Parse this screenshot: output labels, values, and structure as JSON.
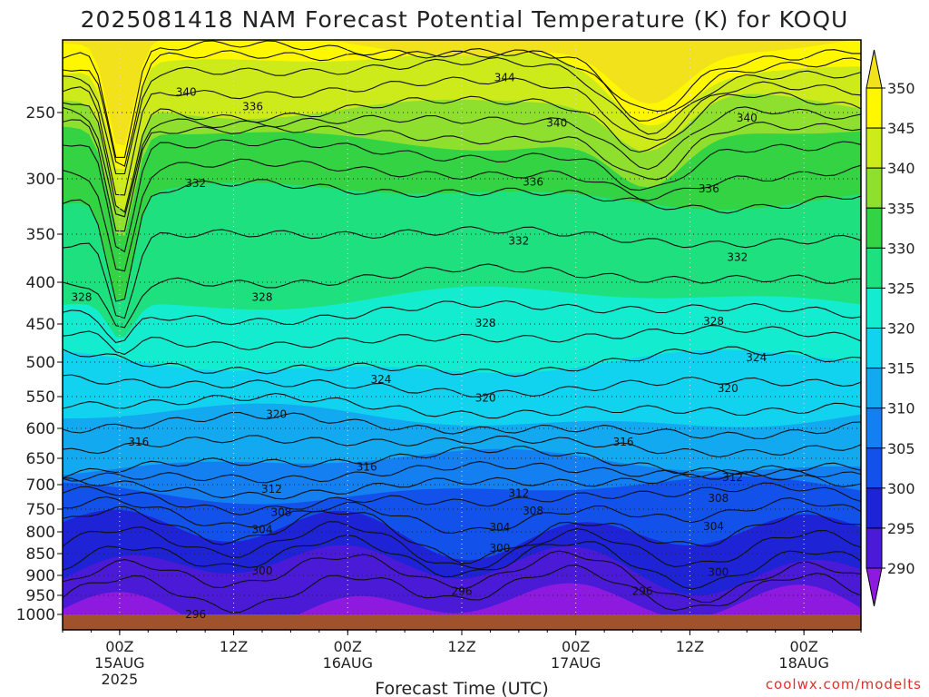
{
  "page_title": "2025081418 NAM Forecast Potential Temperature (K) for KOQU",
  "credit": "coolwx.com/modelts",
  "chart_data": {
    "type": "heatmap",
    "title": "2025081418 NAM Forecast Potential Temperature (K) for KOQU",
    "xlabel": "Forecast Time (UTC)",
    "ylabel": "",
    "x_ticks": [
      {
        "label": "00Z",
        "sub": [
          "15AUG",
          "2025"
        ],
        "hour": 6
      },
      {
        "label": "12Z",
        "sub": [],
        "hour": 18
      },
      {
        "label": "00Z",
        "sub": [
          "16AUG"
        ],
        "hour": 30
      },
      {
        "label": "12Z",
        "sub": [],
        "hour": 42
      },
      {
        "label": "00Z",
        "sub": [
          "17AUG"
        ],
        "hour": 54
      },
      {
        "label": "12Z",
        "sub": [],
        "hour": 66
      },
      {
        "label": "00Z",
        "sub": [
          "18AUG"
        ],
        "hour": 78
      }
    ],
    "xlim_hours": [
      0,
      84
    ],
    "y_ticks": [
      "250",
      "300",
      "350",
      "400",
      "450",
      "500",
      "550",
      "600",
      "650",
      "700",
      "750",
      "800",
      "850",
      "900",
      "950",
      "1000"
    ],
    "y_tick_values": [
      250,
      300,
      350,
      400,
      450,
      500,
      550,
      600,
      650,
      700,
      750,
      800,
      850,
      900,
      950,
      1000
    ],
    "ylim_hpa": [
      200,
      1000
    ],
    "colorbar": {
      "labels": [
        "350",
        "345",
        "340",
        "335",
        "330",
        "325",
        "320",
        "315",
        "310",
        "305",
        "300",
        "295",
        "290"
      ],
      "levels": [
        350,
        345,
        340,
        335,
        330,
        325,
        320,
        315,
        310,
        305,
        300,
        295,
        290
      ],
      "colors": [
        "#f2e21b",
        "#fff700",
        "#cdea1a",
        "#8fe02e",
        "#34d343",
        "#1fe07f",
        "#14ecd0",
        "#11d2ef",
        "#13a9f0",
        "#137ff0",
        "#1252ea",
        "#1e23d6",
        "#4a1ad6",
        "#8e1ae0"
      ]
    },
    "contour_labels": [
      {
        "text": "344",
        "hour": 46.5,
        "p": 226
      },
      {
        "text": "340",
        "hour": 13,
        "p": 236
      },
      {
        "text": "340",
        "hour": 52,
        "p": 258
      },
      {
        "text": "340",
        "hour": 72,
        "p": 254
      },
      {
        "text": "336",
        "hour": 20,
        "p": 246
      },
      {
        "text": "336",
        "hour": 49.5,
        "p": 303
      },
      {
        "text": "336",
        "hour": 68,
        "p": 309
      },
      {
        "text": "332",
        "hour": 14,
        "p": 304
      },
      {
        "text": "332",
        "hour": 48,
        "p": 357
      },
      {
        "text": "332",
        "hour": 71,
        "p": 374
      },
      {
        "text": "328",
        "hour": 2,
        "p": 418
      },
      {
        "text": "328",
        "hour": 21,
        "p": 418
      },
      {
        "text": "328",
        "hour": 44.5,
        "p": 449
      },
      {
        "text": "328",
        "hour": 68.5,
        "p": 447
      },
      {
        "text": "324",
        "hour": 33.5,
        "p": 525
      },
      {
        "text": "324",
        "hour": 73,
        "p": 494
      },
      {
        "text": "320",
        "hour": 22.5,
        "p": 578
      },
      {
        "text": "320",
        "hour": 44.5,
        "p": 552
      },
      {
        "text": "320",
        "hour": 70,
        "p": 538
      },
      {
        "text": "316",
        "hour": 8,
        "p": 623
      },
      {
        "text": "316",
        "hour": 32,
        "p": 666
      },
      {
        "text": "316",
        "hour": 59,
        "p": 623
      },
      {
        "text": "312",
        "hour": 22,
        "p": 709
      },
      {
        "text": "312",
        "hour": 48,
        "p": 718
      },
      {
        "text": "312",
        "hour": 70.5,
        "p": 686
      },
      {
        "text": "308",
        "hour": 23,
        "p": 757
      },
      {
        "text": "308",
        "hour": 49.5,
        "p": 754
      },
      {
        "text": "308",
        "hour": 69,
        "p": 728
      },
      {
        "text": "304",
        "hour": 21,
        "p": 795
      },
      {
        "text": "304",
        "hour": 46,
        "p": 790
      },
      {
        "text": "304",
        "hour": 68.5,
        "p": 788
      },
      {
        "text": "300",
        "hour": 46,
        "p": 838
      },
      {
        "text": "300",
        "hour": 21,
        "p": 890
      },
      {
        "text": "300",
        "hour": 69,
        "p": 893
      },
      {
        "text": "296",
        "hour": 42,
        "p": 940
      },
      {
        "text": "296",
        "hour": 61,
        "p": 940
      },
      {
        "text": "296",
        "hour": 14,
        "p": 1000
      }
    ]
  }
}
